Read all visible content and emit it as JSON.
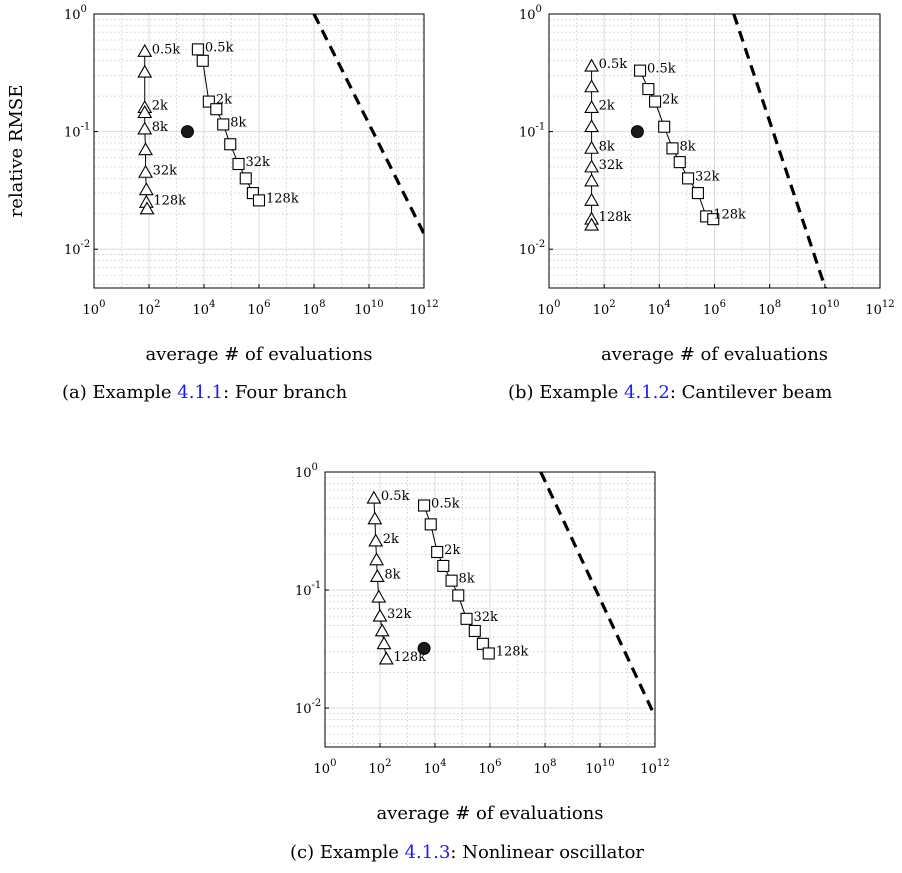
{
  "chart_data": [
    {
      "type": "scatter",
      "log_x": true,
      "log_y": true,
      "xlim_exp": [
        0,
        12
      ],
      "ylim_exp": [
        -2.33,
        0
      ],
      "x_ticks_exp": [
        0,
        2,
        4,
        6,
        8,
        10,
        12
      ],
      "y_ticks_exp": [
        -2,
        -1,
        0
      ],
      "ylabel": "relative RMSE",
      "xlabel": "average # of evaluations",
      "caption_prefix": "(a) Example ",
      "caption_ref": "4.1.1",
      "caption_suffix": ": Four branch",
      "grid": true,
      "series": [
        {
          "marker": "triangle",
          "x": [
            70,
            70,
            70,
            70,
            70,
            75,
            75,
            80,
            80,
            85
          ],
          "y": [
            0.48,
            0.32,
            0.16,
            0.145,
            0.105,
            0.07,
            0.045,
            0.032,
            0.025,
            0.022
          ],
          "labels": [
            {
              "i": 0,
              "text": "0.5k"
            },
            {
              "i": 2,
              "text": "2k"
            },
            {
              "i": 4,
              "text": "8k"
            },
            {
              "i": 6,
              "text": "32k"
            },
            {
              "i": 8,
              "text": "128k"
            }
          ]
        },
        {
          "marker": "square",
          "x": [
            6000,
            9000,
            15000,
            28000,
            50000,
            90000,
            180000,
            330000,
            600000,
            1000000
          ],
          "y": [
            0.5,
            0.4,
            0.18,
            0.155,
            0.115,
            0.078,
            0.053,
            0.04,
            0.03,
            0.026
          ],
          "labels": [
            {
              "i": 0,
              "text": "0.5k"
            },
            {
              "i": 2,
              "text": "2k"
            },
            {
              "i": 4,
              "text": "8k"
            },
            {
              "i": 6,
              "text": "32k"
            },
            {
              "i": 9,
              "text": "128k"
            }
          ]
        },
        {
          "marker": "dot",
          "x": [
            2500
          ],
          "y": [
            0.1
          ]
        },
        {
          "marker": "dashed-line",
          "x": [
            100000000,
            1000000000000
          ],
          "y": [
            1.0,
            0.0135
          ]
        }
      ]
    },
    {
      "type": "scatter",
      "log_x": true,
      "log_y": true,
      "xlim_exp": [
        0,
        12
      ],
      "ylim_exp": [
        -2.33,
        0
      ],
      "x_ticks_exp": [
        0,
        2,
        4,
        6,
        8,
        10,
        12
      ],
      "y_ticks_exp": [
        -2,
        -1,
        0
      ],
      "ylabel": "",
      "xlabel": "average # of evaluations",
      "caption_prefix": "(b) Example ",
      "caption_ref": "4.1.2",
      "caption_suffix": ": Cantilever beam",
      "grid": true,
      "series": [
        {
          "marker": "triangle",
          "x": [
            35,
            35,
            35,
            35,
            35,
            35,
            35,
            35,
            35,
            35
          ],
          "y": [
            0.36,
            0.24,
            0.16,
            0.11,
            0.072,
            0.05,
            0.038,
            0.026,
            0.018,
            0.016
          ],
          "labels": [
            {
              "i": 0,
              "text": "0.5k"
            },
            {
              "i": 2,
              "text": "2k"
            },
            {
              "i": 4,
              "text": "8k"
            },
            {
              "i": 5,
              "text": "32k"
            },
            {
              "i": 8,
              "text": "128k"
            }
          ]
        },
        {
          "marker": "square",
          "x": [
            2000,
            4000,
            7000,
            15000,
            30000,
            55000,
            110000,
            250000,
            500000,
            900000
          ],
          "y": [
            0.33,
            0.23,
            0.18,
            0.11,
            0.072,
            0.055,
            0.04,
            0.03,
            0.019,
            0.018
          ],
          "labels": [
            {
              "i": 0,
              "text": "0.5k"
            },
            {
              "i": 2,
              "text": "2k"
            },
            {
              "i": 4,
              "text": "8k"
            },
            {
              "i": 6,
              "text": "32k"
            },
            {
              "i": 8,
              "text": "128k"
            }
          ]
        },
        {
          "marker": "dot",
          "x": [
            1600
          ],
          "y": [
            0.1
          ]
        },
        {
          "marker": "dashed-line",
          "x": [
            5000000,
            11000000000
          ],
          "y": [
            1.0,
            0.0045
          ]
        }
      ]
    },
    {
      "type": "scatter",
      "log_x": true,
      "log_y": true,
      "xlim_exp": [
        0,
        12
      ],
      "ylim_exp": [
        -2.33,
        0
      ],
      "x_ticks_exp": [
        0,
        2,
        4,
        6,
        8,
        10,
        12
      ],
      "y_ticks_exp": [
        -2,
        -1,
        0
      ],
      "ylabel": "",
      "xlabel": "average # of evaluations",
      "caption_prefix": "(c) Example ",
      "caption_ref": "4.1.3",
      "caption_suffix": ": Nonlinear oscillator",
      "grid": true,
      "series": [
        {
          "marker": "triangle",
          "x": [
            60,
            65,
            70,
            75,
            80,
            90,
            100,
            120,
            140,
            170
          ],
          "y": [
            0.6,
            0.4,
            0.26,
            0.18,
            0.13,
            0.087,
            0.06,
            0.045,
            0.035,
            0.026
          ],
          "labels": [
            {
              "i": 0,
              "text": "0.5k"
            },
            {
              "i": 2,
              "text": "2k"
            },
            {
              "i": 4,
              "text": "8k"
            },
            {
              "i": 6,
              "text": "32k"
            },
            {
              "i": 9,
              "text": "128k"
            }
          ]
        },
        {
          "marker": "square",
          "x": [
            4000,
            7000,
            12000,
            20000,
            40000,
            70000,
            140000,
            280000,
            550000,
            900000
          ],
          "y": [
            0.52,
            0.36,
            0.21,
            0.16,
            0.12,
            0.09,
            0.057,
            0.045,
            0.035,
            0.029
          ],
          "labels": [
            {
              "i": 0,
              "text": "0.5k"
            },
            {
              "i": 2,
              "text": "2k"
            },
            {
              "i": 4,
              "text": "8k"
            },
            {
              "i": 6,
              "text": "32k"
            },
            {
              "i": 9,
              "text": "128k"
            }
          ]
        },
        {
          "marker": "dot",
          "x": [
            4000
          ],
          "y": [
            0.032
          ]
        },
        {
          "marker": "dashed-line",
          "x": [
            70000000,
            1000000000000
          ],
          "y": [
            1.0,
            0.0085
          ]
        }
      ]
    }
  ]
}
